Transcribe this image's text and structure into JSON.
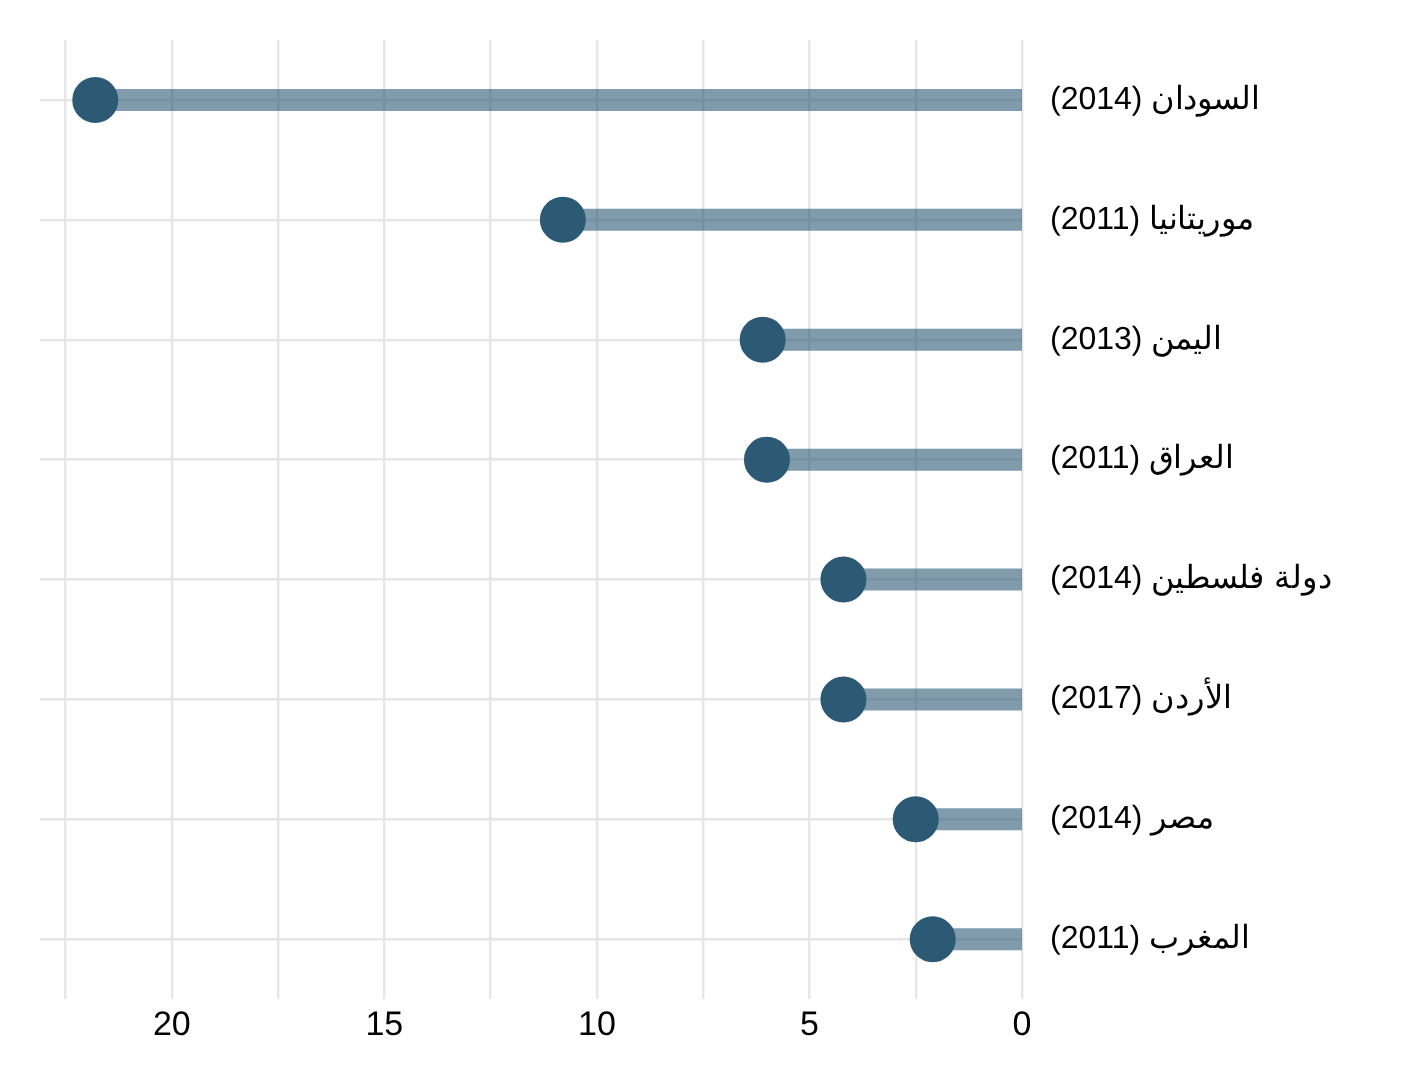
{
  "chart_data": {
    "type": "lollipop",
    "orientation": "horizontal",
    "categories": [
      "السودان (2014)",
      "موريتانيا (2011)",
      "اليمن (2013)",
      "العراق (2011)",
      "دولة فلسطين (2014)",
      "الأردن (2017)",
      "مصر (2014)",
      "المغرب (2011)"
    ],
    "series": [
      {
        "color": "#2c5a75",
        "values": [
          21.8,
          10.8,
          6.1,
          6.0,
          4.2,
          4.2,
          2.5,
          2.1
        ]
      }
    ],
    "xlim": [
      23.1,
      0
    ],
    "xticks": [
      {
        "value": 22.5,
        "label": null
      },
      20,
      {
        "value": 17.5,
        "label": null
      },
      15,
      {
        "value": 12.5,
        "label": null
      },
      10,
      {
        "value": 7.5,
        "label": null
      },
      5,
      {
        "value": 2.5,
        "label": null
      },
      0
    ],
    "grid": true,
    "legend": false,
    "marker": "circle"
  }
}
